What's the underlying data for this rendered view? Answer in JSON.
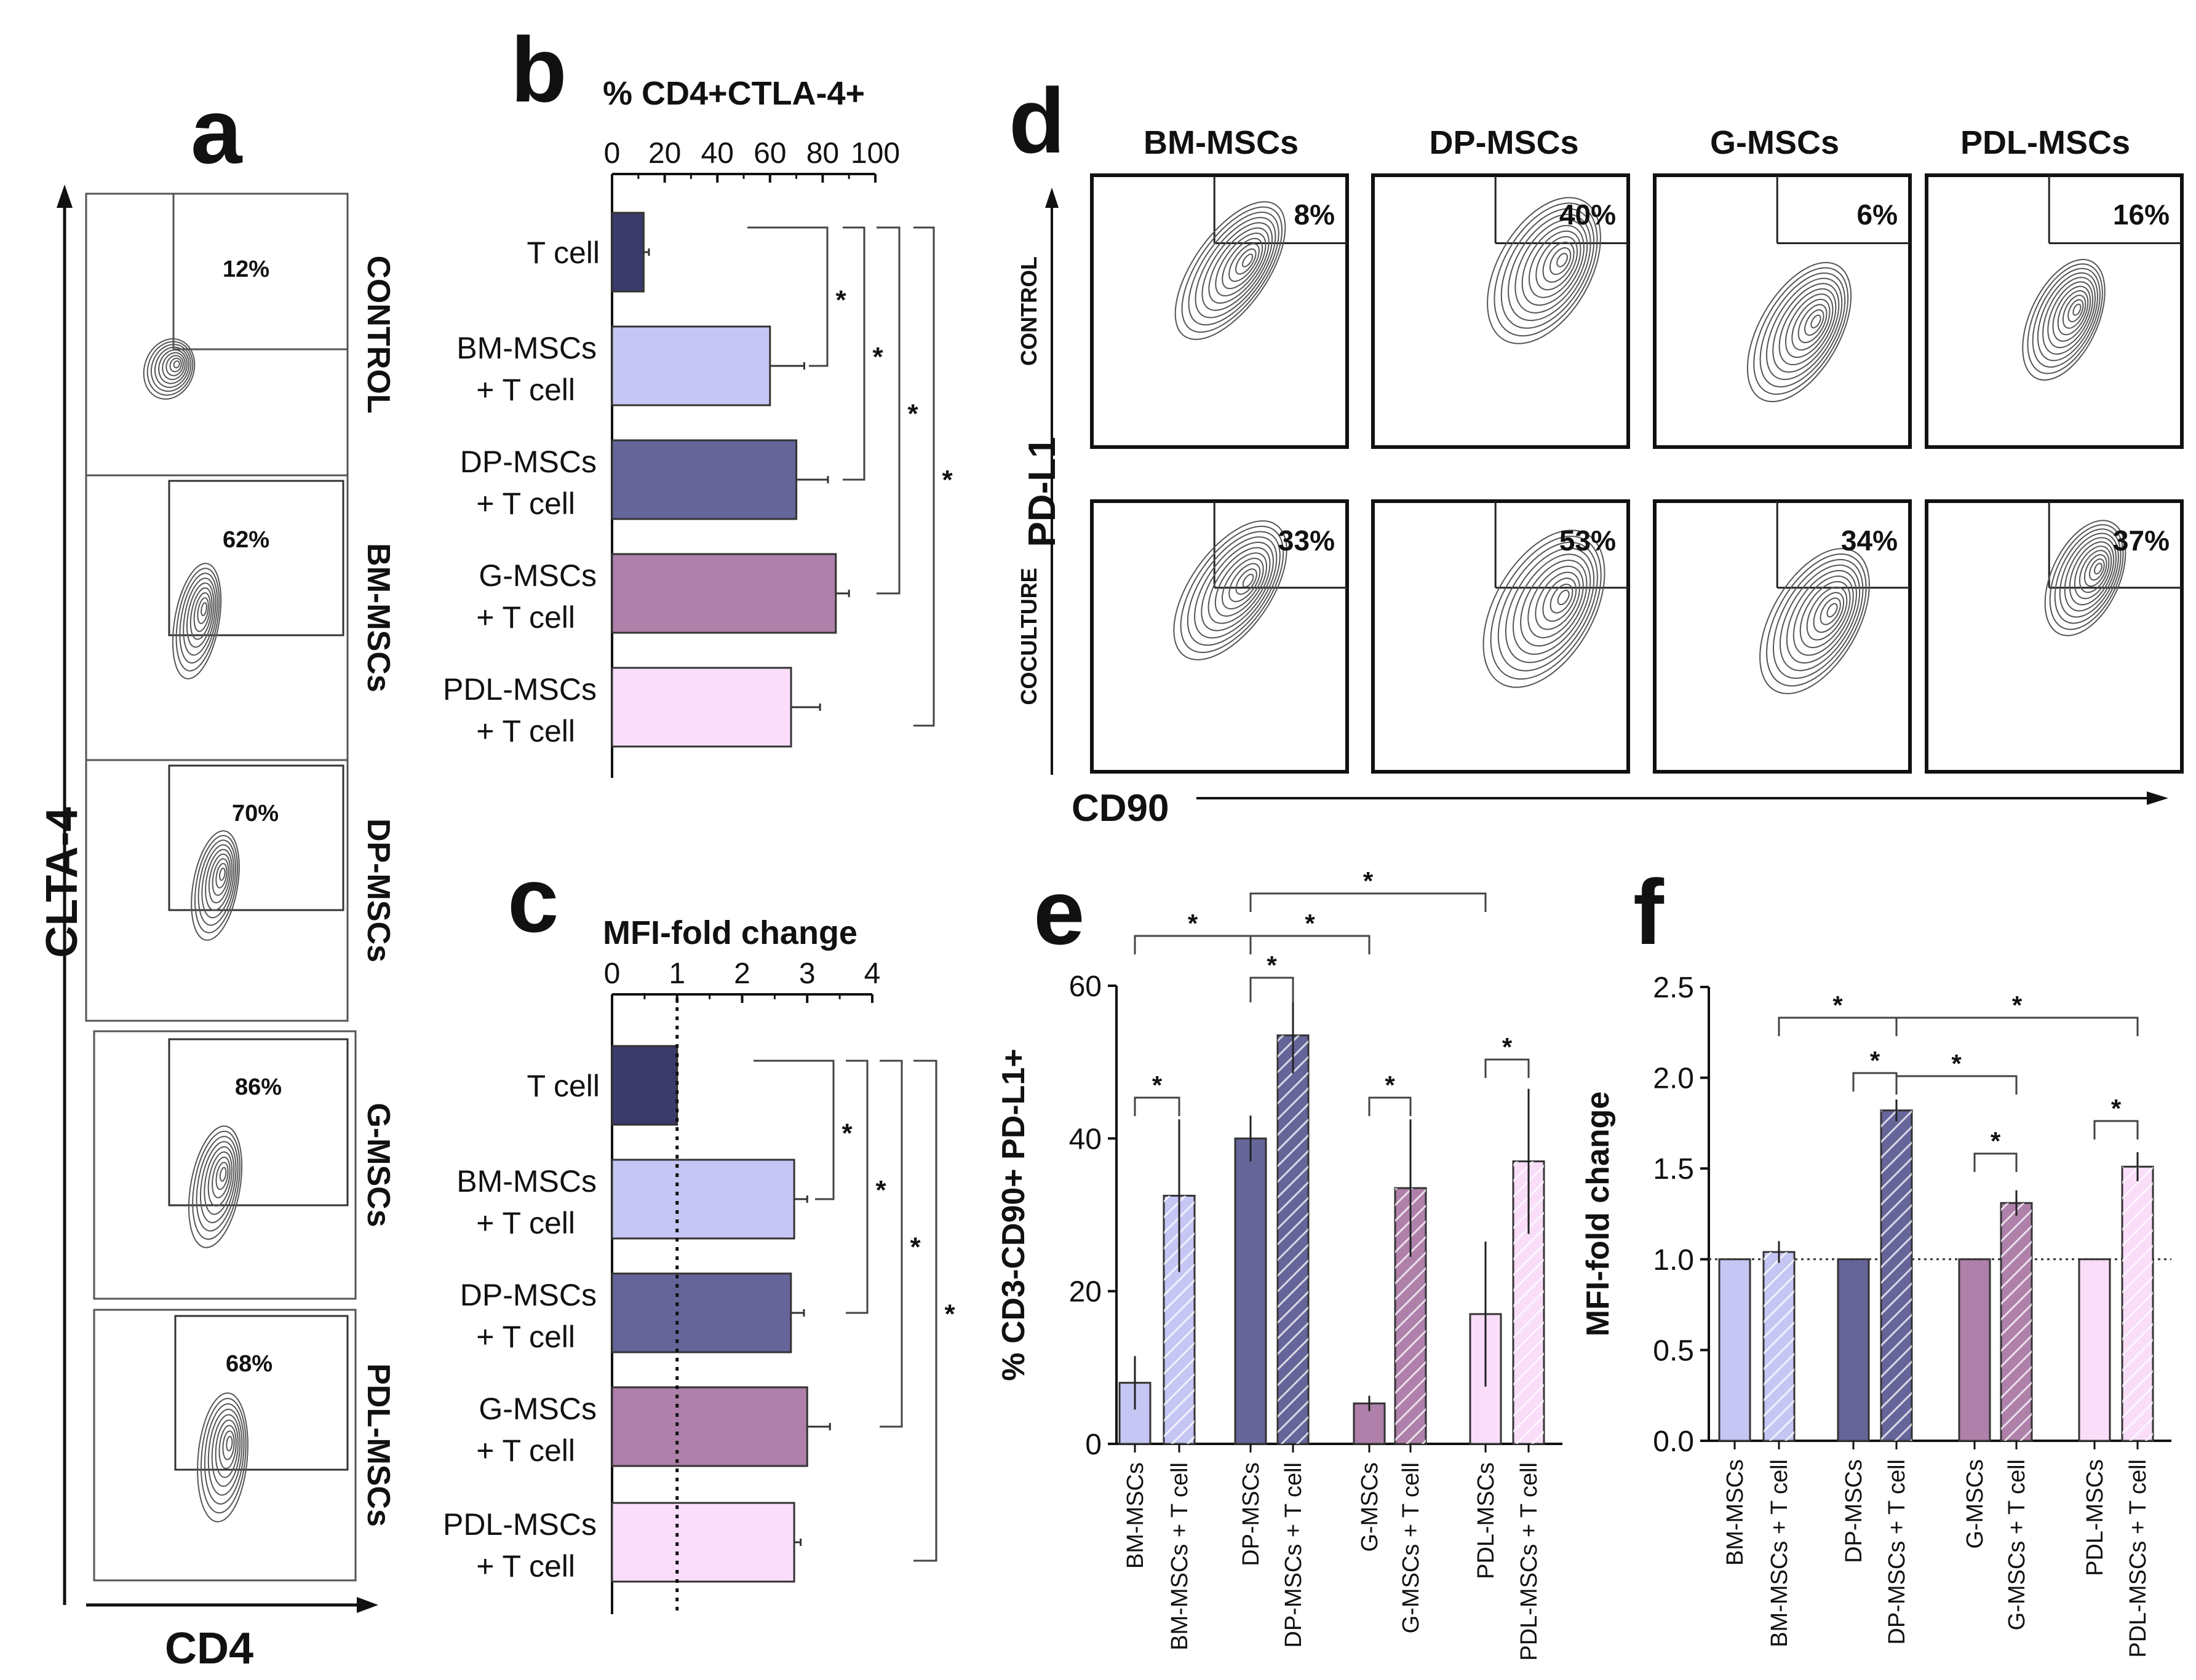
{
  "figure": {
    "colors": {
      "tcell": "#3b3a6b",
      "bm": "#c6c6f4",
      "dp": "#66659a",
      "g": "#ae80aa",
      "pdl": "#f9ddf9",
      "ink": "#111111"
    }
  },
  "panel_a": {
    "letter": "a",
    "y_axis_label": "CLTA-4",
    "x_axis_label": "CD4",
    "rows": [
      {
        "label": "CONTROL",
        "percent": "12%"
      },
      {
        "label": "BM-MSCs",
        "percent": "62%"
      },
      {
        "label": "DP-MSCs",
        "percent": "70%"
      },
      {
        "label": "G-MSCs",
        "percent": "86%"
      },
      {
        "label": "PDL-MSCs",
        "percent": "68%"
      }
    ]
  },
  "panel_d": {
    "letter": "d",
    "columns": [
      "BM-MSCs",
      "DP-MSCs",
      "G-MSCs",
      "PDL-MSCs"
    ],
    "row_labels": [
      "CONTROL",
      "COCULTURE"
    ],
    "y_axis_label": "PD-L1",
    "x_axis_label": "CD90",
    "percents": [
      [
        "8%",
        "40%",
        "6%",
        "16%"
      ],
      [
        "33%",
        "53%",
        "34%",
        "37%"
      ]
    ]
  },
  "chart_data": [
    {
      "panel": "b",
      "type": "bar",
      "orientation": "horizontal",
      "title": "% CD4+CTLA-4+",
      "xlim": [
        0,
        100
      ],
      "ticks": [
        "0",
        "20",
        "40",
        "60",
        "80",
        "100"
      ],
      "categories": [
        {
          "line1": "T cell",
          "line2": ""
        },
        {
          "line1": "BM-MSCs",
          "line2": "+ T cell"
        },
        {
          "line1": "DP-MSCs",
          "line2": "+ T cell"
        },
        {
          "line1": "G-MSCs",
          "line2": "+ T cell"
        },
        {
          "line1": "PDL-MSCs",
          "line2": "+ T cell"
        }
      ],
      "values": [
        12,
        60,
        70,
        85,
        68
      ],
      "errors": [
        2,
        13,
        12,
        5,
        11
      ],
      "significance": [
        "*",
        "*",
        "*",
        "*"
      ]
    },
    {
      "panel": "c",
      "type": "bar",
      "orientation": "horizontal",
      "title": "MFI-fold change",
      "xlim": [
        0,
        4
      ],
      "ticks": [
        "0",
        "1",
        "2",
        "3",
        "4"
      ],
      "reference_line": 1,
      "categories": [
        {
          "line1": "T cell",
          "line2": ""
        },
        {
          "line1": "BM-MSCs",
          "line2": "+ T cell"
        },
        {
          "line1": "DP-MSCs",
          "line2": "+ T cell"
        },
        {
          "line1": "G-MSCs",
          "line2": "+ T cell"
        },
        {
          "line1": "PDL-MSCs",
          "line2": "+ T cell"
        }
      ],
      "values": [
        1.0,
        2.8,
        2.75,
        3.0,
        2.8
      ],
      "errors": [
        0,
        0.2,
        0.2,
        0.35,
        0.1
      ],
      "significance": [
        "*",
        "*",
        "*",
        "*"
      ]
    },
    {
      "panel": "e",
      "type": "bar",
      "ylabel": "% CD3-CD90+ PD-L1+",
      "ylim": [
        0,
        60
      ],
      "ticks": [
        "0",
        "20",
        "40",
        "60"
      ],
      "categories": [
        "BM-MSCs",
        "BM-MSCs + T cell",
        "DP-MSCs",
        "DP-MSCs + T cell",
        "G-MSCs",
        "G-MSCs + T cell",
        "PDL-MSCs",
        "PDL-MSCs + T cell"
      ],
      "values": [
        8,
        32.5,
        40,
        53.5,
        5.3,
        33.5,
        17,
        37
      ],
      "errors": [
        3.5,
        10,
        3,
        5,
        1,
        9,
        9.5,
        9.5
      ],
      "significance": [
        "*",
        "*",
        "*",
        "*",
        "*",
        "*",
        "*"
      ]
    },
    {
      "panel": "f",
      "type": "bar",
      "ylabel": "MFI-fold change",
      "ylim": [
        0,
        2.5
      ],
      "ticks": [
        "0.0",
        "0.5",
        "1.0",
        "1.5",
        "2.0",
        "2.5"
      ],
      "reference_line": 1.0,
      "categories": [
        "BM-MSCs",
        "BM-MSCs + T cell",
        "DP-MSCs",
        "DP-MSCs + T cell",
        "G-MSCs",
        "G-MSCs + T cell",
        "PDL-MSCs",
        "PDL-MSCs + T cell"
      ],
      "values": [
        1.0,
        1.04,
        1.0,
        1.82,
        1.0,
        1.31,
        1.0,
        1.51
      ],
      "errors": [
        0,
        0.06,
        0,
        0.06,
        0,
        0.07,
        0,
        0.08
      ],
      "significance": [
        "*",
        "*",
        "*",
        "*",
        "*",
        "*"
      ]
    }
  ]
}
